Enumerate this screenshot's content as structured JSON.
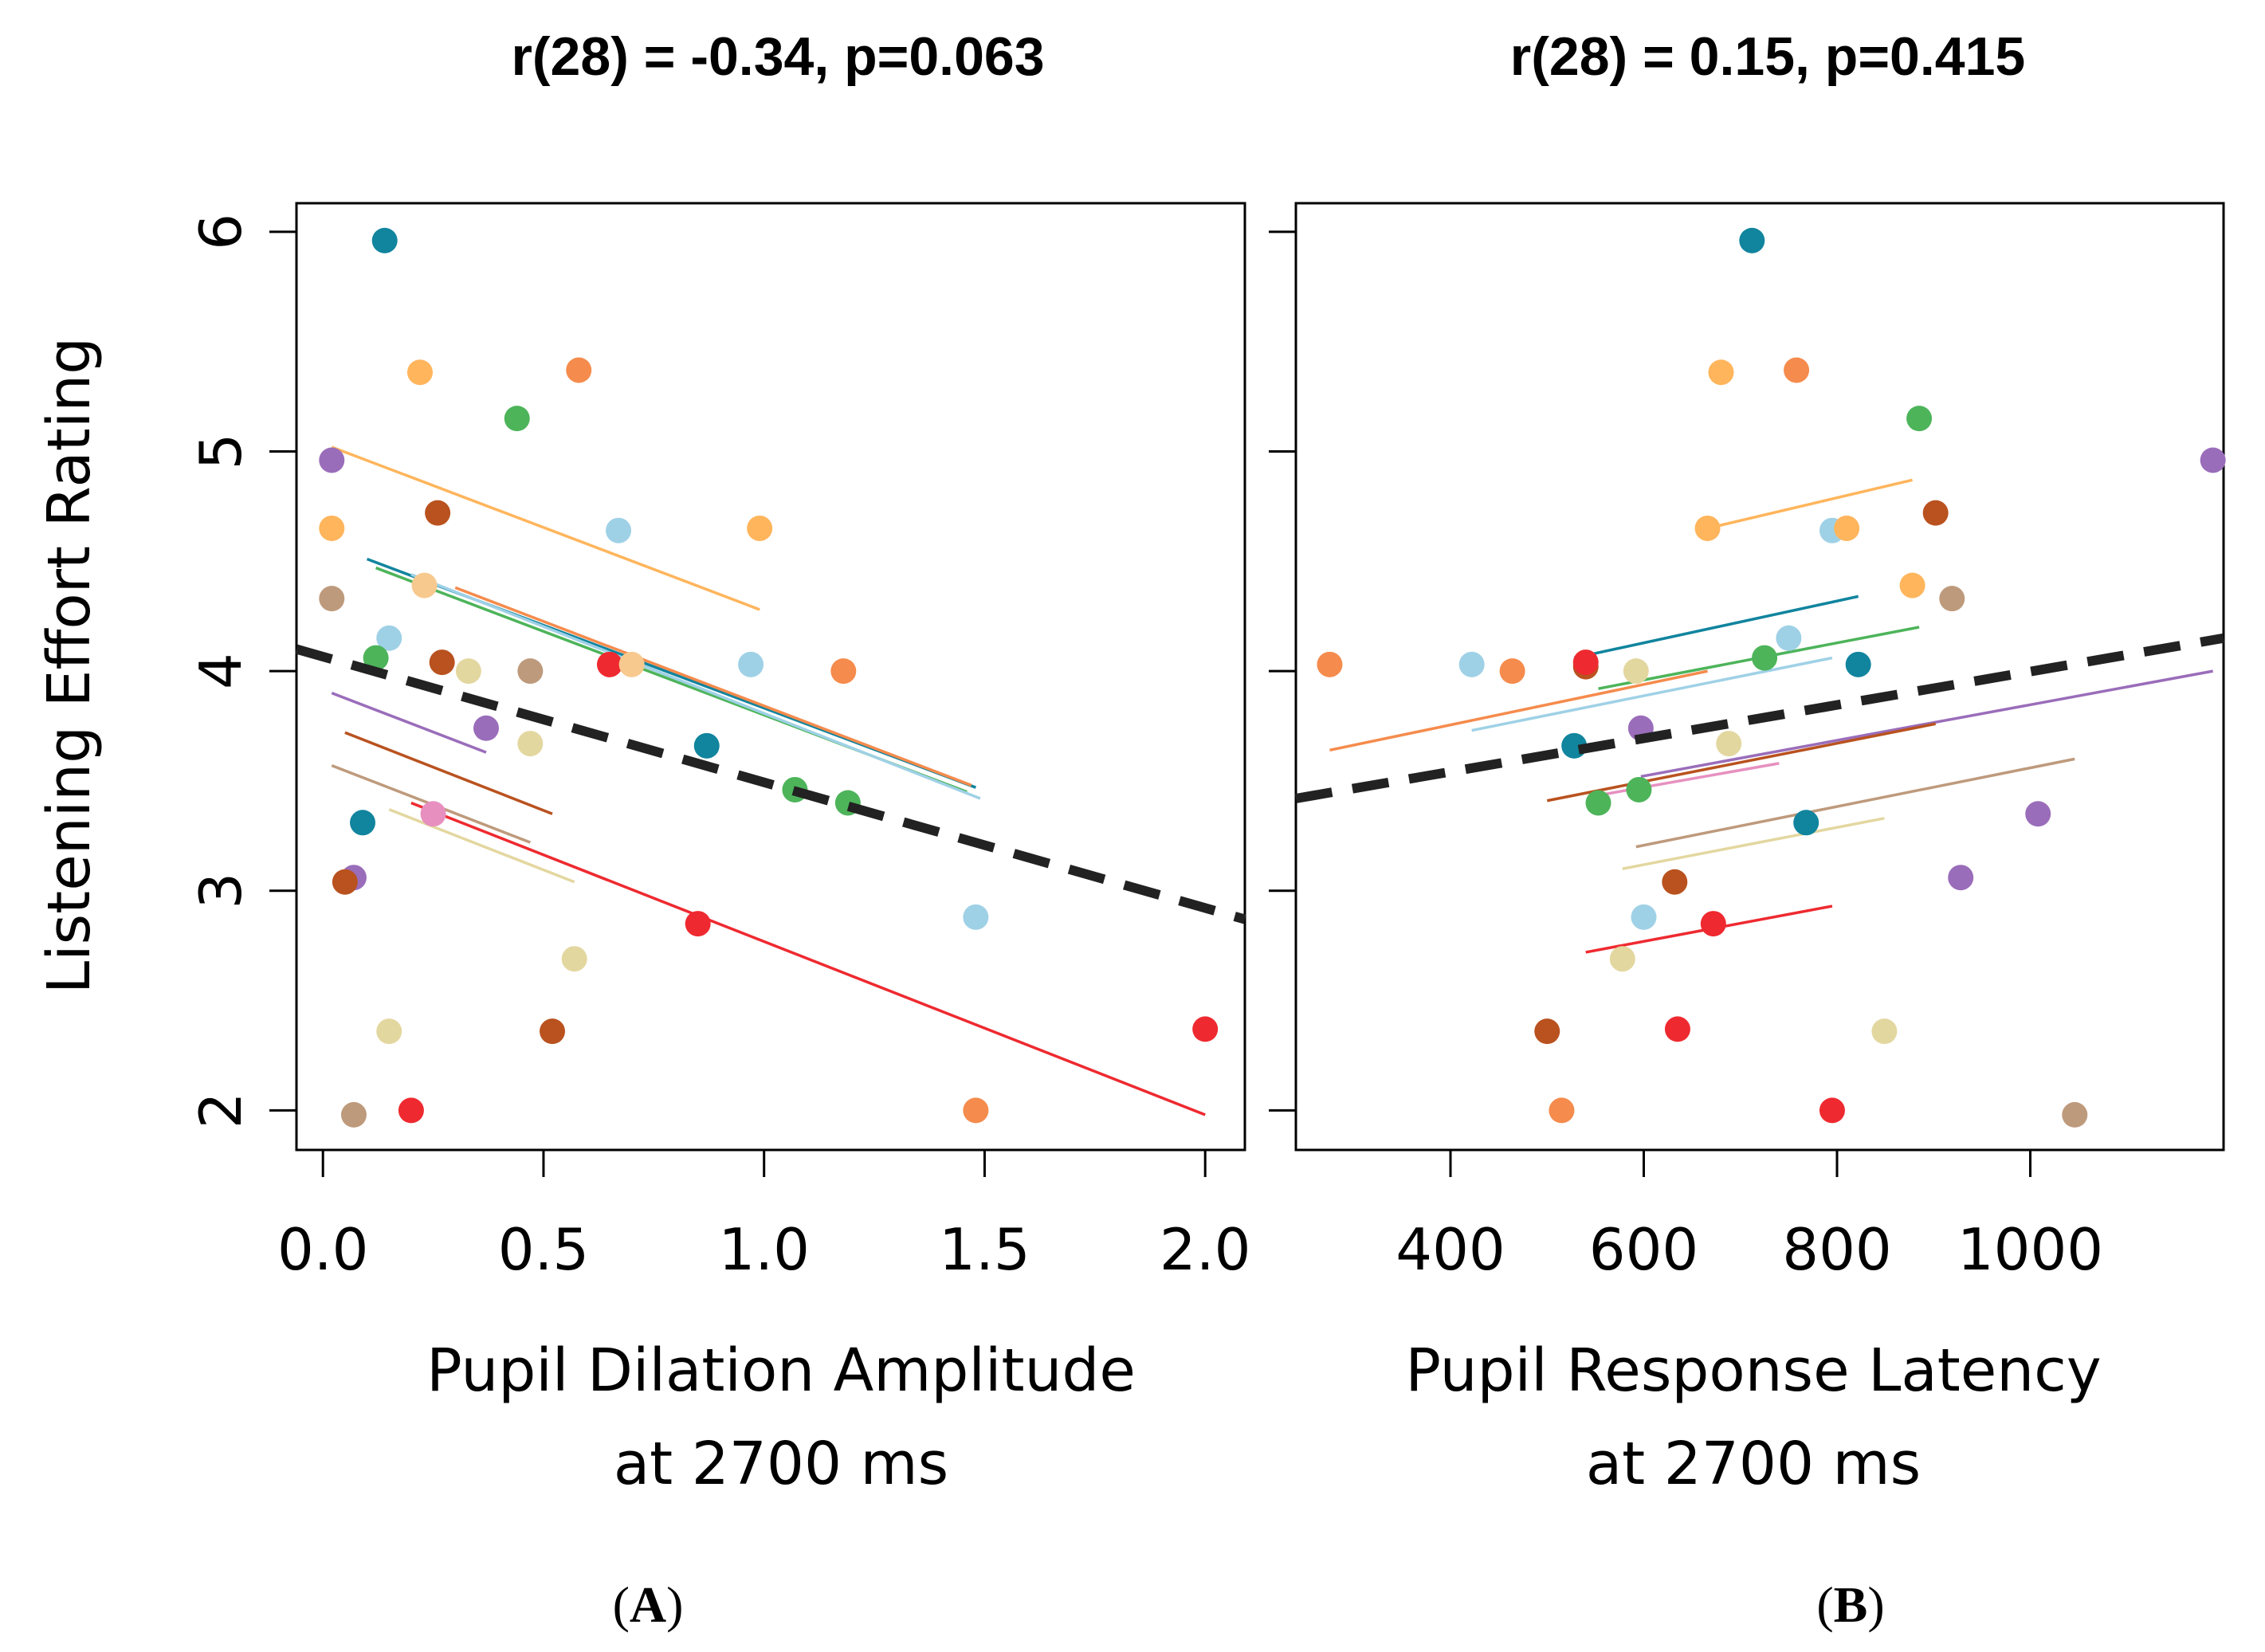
{
  "chart_data": [
    {
      "type": "scatter",
      "panel_label": {
        "open": "(",
        "letter": "A",
        "close": ")"
      },
      "title": "r(28) = -0.34, p=0.063",
      "ylabel": "Listening Effort Rating",
      "xlabel_lines": [
        "Pupil Dilation Amplitude",
        "at 2700 ms"
      ],
      "xlim": [
        -0.06,
        2.09
      ],
      "ylim": [
        1.82,
        6.13
      ],
      "x_ticks": [
        0,
        0.5,
        1,
        1.5,
        2
      ],
      "x_tick_labels": [
        "0.0",
        "0.5",
        "1.0",
        "1.5",
        "2.0"
      ],
      "y_ticks": [
        2,
        3,
        4,
        5,
        6
      ],
      "y_tick_labels": [
        "2",
        "3",
        "4",
        "5",
        "6"
      ],
      "points": [
        {
          "x": 0.14,
          "y": 5.96,
          "color": "#11849E"
        },
        {
          "x": 0.22,
          "y": 5.36,
          "color": "#FFB55C"
        },
        {
          "x": 0.58,
          "y": 5.37,
          "color": "#F58B4C"
        },
        {
          "x": 0.44,
          "y": 5.15,
          "color": "#4DB45A"
        },
        {
          "x": 0.02,
          "y": 4.96,
          "color": "#9A6DBA"
        },
        {
          "x": 0.26,
          "y": 4.72,
          "color": "#B9521F"
        },
        {
          "x": 0.02,
          "y": 4.65,
          "color": "#FFB55C"
        },
        {
          "x": 0.67,
          "y": 4.64,
          "color": "#9FD1E6"
        },
        {
          "x": 0.99,
          "y": 4.65,
          "color": "#FFB55C"
        },
        {
          "x": 0.23,
          "y": 4.39,
          "color": "#F7C98F"
        },
        {
          "x": 0.02,
          "y": 4.33,
          "color": "#BE9A7C"
        },
        {
          "x": 0.15,
          "y": 4.15,
          "color": "#9FD1E6"
        },
        {
          "x": 0.12,
          "y": 4.06,
          "color": "#4DB45A"
        },
        {
          "x": 0.27,
          "y": 4.04,
          "color": "#B9521F"
        },
        {
          "x": 0.33,
          "y": 4.0,
          "color": "#E3D7A0"
        },
        {
          "x": 0.47,
          "y": 4.0,
          "color": "#BE9A7C"
        },
        {
          "x": 0.65,
          "y": 4.03,
          "color": "#EE2A30"
        },
        {
          "x": 0.7,
          "y": 4.03,
          "color": "#F7C98F"
        },
        {
          "x": 0.97,
          "y": 4.03,
          "color": "#9FD1E6"
        },
        {
          "x": 1.18,
          "y": 4.0,
          "color": "#F58B4C"
        },
        {
          "x": 0.37,
          "y": 3.74,
          "color": "#9A6DBA"
        },
        {
          "x": 0.47,
          "y": 3.67,
          "color": "#E3D7A0"
        },
        {
          "x": 0.87,
          "y": 3.66,
          "color": "#11849E"
        },
        {
          "x": 1.07,
          "y": 3.46,
          "color": "#4DB45A"
        },
        {
          "x": 1.19,
          "y": 3.4,
          "color": "#4DB45A"
        },
        {
          "x": 0.25,
          "y": 3.35,
          "color": "#E790C0"
        },
        {
          "x": 0.09,
          "y": 3.31,
          "color": "#11849E"
        },
        {
          "x": 0.07,
          "y": 3.06,
          "color": "#9A6DBA"
        },
        {
          "x": 0.05,
          "y": 3.04,
          "color": "#B9521F"
        },
        {
          "x": 0.85,
          "y": 2.85,
          "color": "#EE2A30"
        },
        {
          "x": 1.48,
          "y": 2.88,
          "color": "#9FD1E6"
        },
        {
          "x": 0.57,
          "y": 2.69,
          "color": "#E3D7A0"
        },
        {
          "x": 2.0,
          "y": 2.37,
          "color": "#EE2A30"
        },
        {
          "x": 0.15,
          "y": 2.36,
          "color": "#E3D7A0"
        },
        {
          "x": 0.52,
          "y": 2.36,
          "color": "#B9521F"
        },
        {
          "x": 0.2,
          "y": 2.0,
          "color": "#EE2A30"
        },
        {
          "x": 0.07,
          "y": 1.98,
          "color": "#BE9A7C"
        },
        {
          "x": 1.48,
          "y": 2.0,
          "color": "#F58B4C"
        }
      ],
      "lines": [
        {
          "x": [
            0.02,
            0.99
          ],
          "y": [
            5.02,
            4.28
          ],
          "color": "#FFB55C"
        },
        {
          "x": [
            0.1,
            1.48
          ],
          "y": [
            4.51,
            3.47
          ],
          "color": "#11849E"
        },
        {
          "x": [
            0.12,
            1.46
          ],
          "y": [
            4.47,
            3.45
          ],
          "color": "#4DB45A"
        },
        {
          "x": [
            0.2,
            1.49
          ],
          "y": [
            4.44,
            3.42
          ],
          "color": "#9FD1E6"
        },
        {
          "x": [
            0.3,
            1.47
          ],
          "y": [
            4.38,
            3.48
          ],
          "color": "#F58B4C"
        },
        {
          "x": [
            0.02,
            0.37
          ],
          "y": [
            3.9,
            3.63
          ],
          "color": "#9A6DBA"
        },
        {
          "x": [
            0.05,
            0.52
          ],
          "y": [
            3.72,
            3.35
          ],
          "color": "#B9521F"
        },
        {
          "x": [
            0.02,
            0.47
          ],
          "y": [
            3.57,
            3.22
          ],
          "color": "#BE9A7C"
        },
        {
          "x": [
            0.15,
            0.57
          ],
          "y": [
            3.37,
            3.04
          ],
          "color": "#E3D7A0"
        },
        {
          "x": [
            0.2,
            2.0
          ],
          "y": [
            3.4,
            1.98
          ],
          "color": "#EE2A30"
        }
      ],
      "fit": {
        "x": [
          -0.06,
          2.09
        ],
        "y": [
          4.1,
          2.87
        ],
        "color": "#222222",
        "style": "dashed"
      }
    },
    {
      "type": "scatter",
      "panel_label": {
        "open": "(",
        "letter": "B",
        "close": ")"
      },
      "title": "r(28) = 0.15, p=0.415",
      "xlabel_lines": [
        "Pupil Response Latency",
        "at 2700 ms"
      ],
      "xlim": [
        240,
        1200
      ],
      "ylim": [
        1.82,
        6.13
      ],
      "x_ticks": [
        400,
        600,
        800,
        1000
      ],
      "x_tick_labels": [
        "400",
        "600",
        "800",
        "1000"
      ],
      "y_ticks": [
        2,
        3,
        4,
        5,
        6
      ],
      "points": [
        {
          "x": 712,
          "y": 5.96,
          "color": "#11849E"
        },
        {
          "x": 680,
          "y": 5.36,
          "color": "#FFB55C"
        },
        {
          "x": 758,
          "y": 5.37,
          "color": "#F58B4C"
        },
        {
          "x": 885,
          "y": 5.15,
          "color": "#4DB45A"
        },
        {
          "x": 1189,
          "y": 4.96,
          "color": "#9A6DBA"
        },
        {
          "x": 902,
          "y": 4.72,
          "color": "#B9521F"
        },
        {
          "x": 666,
          "y": 4.65,
          "color": "#FFB55C"
        },
        {
          "x": 795,
          "y": 4.64,
          "color": "#9FD1E6"
        },
        {
          "x": 810,
          "y": 4.65,
          "color": "#FFB55C"
        },
        {
          "x": 878,
          "y": 4.39,
          "color": "#FFB55C"
        },
        {
          "x": 919,
          "y": 4.33,
          "color": "#BE9A7C"
        },
        {
          "x": 750,
          "y": 4.15,
          "color": "#9FD1E6"
        },
        {
          "x": 725,
          "y": 4.06,
          "color": "#4DB45A"
        },
        {
          "x": 275,
          "y": 4.03,
          "color": "#F58B4C"
        },
        {
          "x": 422,
          "y": 4.03,
          "color": "#9FD1E6"
        },
        {
          "x": 464,
          "y": 4.0,
          "color": "#F58B4C"
        },
        {
          "x": 540,
          "y": 4.02,
          "color": "#B9521F"
        },
        {
          "x": 540,
          "y": 4.04,
          "color": "#EE2A30"
        },
        {
          "x": 592,
          "y": 4.0,
          "color": "#E3D7A0"
        },
        {
          "x": 822,
          "y": 4.03,
          "color": "#11849E"
        },
        {
          "x": 597,
          "y": 3.74,
          "color": "#9A6DBA"
        },
        {
          "x": 528,
          "y": 3.66,
          "color": "#11849E"
        },
        {
          "x": 688,
          "y": 3.67,
          "color": "#E3D7A0"
        },
        {
          "x": 595,
          "y": 3.46,
          "color": "#4DB45A"
        },
        {
          "x": 553,
          "y": 3.4,
          "color": "#4DB45A"
        },
        {
          "x": 768,
          "y": 3.31,
          "color": "#11849E"
        },
        {
          "x": 1008,
          "y": 3.35,
          "color": "#9A6DBA"
        },
        {
          "x": 928,
          "y": 3.06,
          "color": "#9A6DBA"
        },
        {
          "x": 632,
          "y": 3.04,
          "color": "#B9521F"
        },
        {
          "x": 600,
          "y": 2.88,
          "color": "#9FD1E6"
        },
        {
          "x": 672,
          "y": 2.85,
          "color": "#EE2A30"
        },
        {
          "x": 578,
          "y": 2.69,
          "color": "#E3D7A0"
        },
        {
          "x": 500,
          "y": 2.36,
          "color": "#B9521F"
        },
        {
          "x": 635,
          "y": 2.37,
          "color": "#EE2A30"
        },
        {
          "x": 849,
          "y": 2.36,
          "color": "#E3D7A0"
        },
        {
          "x": 515,
          "y": 2.0,
          "color": "#F58B4C"
        },
        {
          "x": 795,
          "y": 2.0,
          "color": "#EE2A30"
        },
        {
          "x": 1046,
          "y": 1.98,
          "color": "#BE9A7C"
        }
      ],
      "lines": [
        {
          "x": [
            666,
            878
          ],
          "y": [
            4.65,
            4.87
          ],
          "color": "#FFB55C"
        },
        {
          "x": [
            528,
            822
          ],
          "y": [
            4.06,
            4.34
          ],
          "color": "#11849E"
        },
        {
          "x": [
            553,
            885
          ],
          "y": [
            3.92,
            4.2
          ],
          "color": "#4DB45A"
        },
        {
          "x": [
            275,
            666
          ],
          "y": [
            3.64,
            4.0
          ],
          "color": "#F58B4C"
        },
        {
          "x": [
            422,
            795
          ],
          "y": [
            3.73,
            4.06
          ],
          "color": "#9FD1E6"
        },
        {
          "x": [
            597,
            1189
          ],
          "y": [
            3.52,
            4.0
          ],
          "color": "#9A6DBA"
        },
        {
          "x": [
            500,
            902
          ],
          "y": [
            3.41,
            3.76
          ],
          "color": "#B9521F"
        },
        {
          "x": [
            592,
            1046
          ],
          "y": [
            3.2,
            3.6
          ],
          "color": "#BE9A7C"
        },
        {
          "x": [
            578,
            849
          ],
          "y": [
            3.1,
            3.33
          ],
          "color": "#E3D7A0"
        },
        {
          "x": [
            540,
            795
          ],
          "y": [
            2.72,
            2.93
          ],
          "color": "#EE2A30"
        },
        {
          "x": [
            560,
            740
          ],
          "y": [
            3.44,
            3.58
          ],
          "color": "#E790C0"
        }
      ],
      "fit": {
        "x": [
          240,
          1200
        ],
        "y": [
          3.42,
          4.15
        ],
        "color": "#222222",
        "style": "dashed"
      }
    }
  ]
}
